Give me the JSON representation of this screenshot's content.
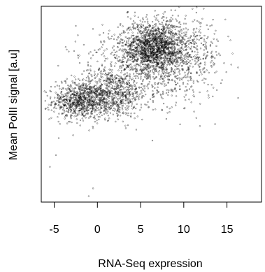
{
  "chart_data": {
    "type": "scatter",
    "title": "",
    "xlabel": "RNA-Seq expression",
    "ylabel": "Mean PolII signal [a.u]",
    "xlim": [
      -6.5,
      19
    ],
    "xticks": [
      -5,
      0,
      5,
      10,
      15
    ],
    "xtick_labels": [
      "-5",
      "0",
      "5",
      "10",
      "15"
    ],
    "ylim": [
      0,
      1
    ],
    "y_tick_labels_shown": false,
    "grid": false,
    "legend": "none",
    "marker_color": "#000000",
    "clusters": [
      {
        "center": [
          -2,
          0.515
        ],
        "spread": [
          1.6,
          0.045
        ],
        "count": 650
      },
      {
        "center": [
          1.5,
          0.55
        ],
        "spread": [
          2.2,
          0.06
        ],
        "count": 700
      },
      {
        "center": [
          6.5,
          0.79
        ],
        "spread": [
          1.9,
          0.065
        ],
        "count": 1400
      },
      {
        "center": [
          9,
          0.74
        ],
        "spread": [
          2.8,
          0.1
        ],
        "count": 650
      },
      {
        "center": [
          4,
          0.67
        ],
        "spread": [
          3.5,
          0.11
        ],
        "count": 350
      }
    ],
    "outliers": [
      {
        "x": -5.5,
        "y": 0.18
      },
      {
        "x": -1,
        "y": 0.03
      },
      {
        "x": -0.5,
        "y": 0.07
      },
      {
        "x": -4.8,
        "y": 0.24
      },
      {
        "x": 3.5,
        "y": 0.97
      },
      {
        "x": -2.5,
        "y": 0.9
      }
    ]
  }
}
